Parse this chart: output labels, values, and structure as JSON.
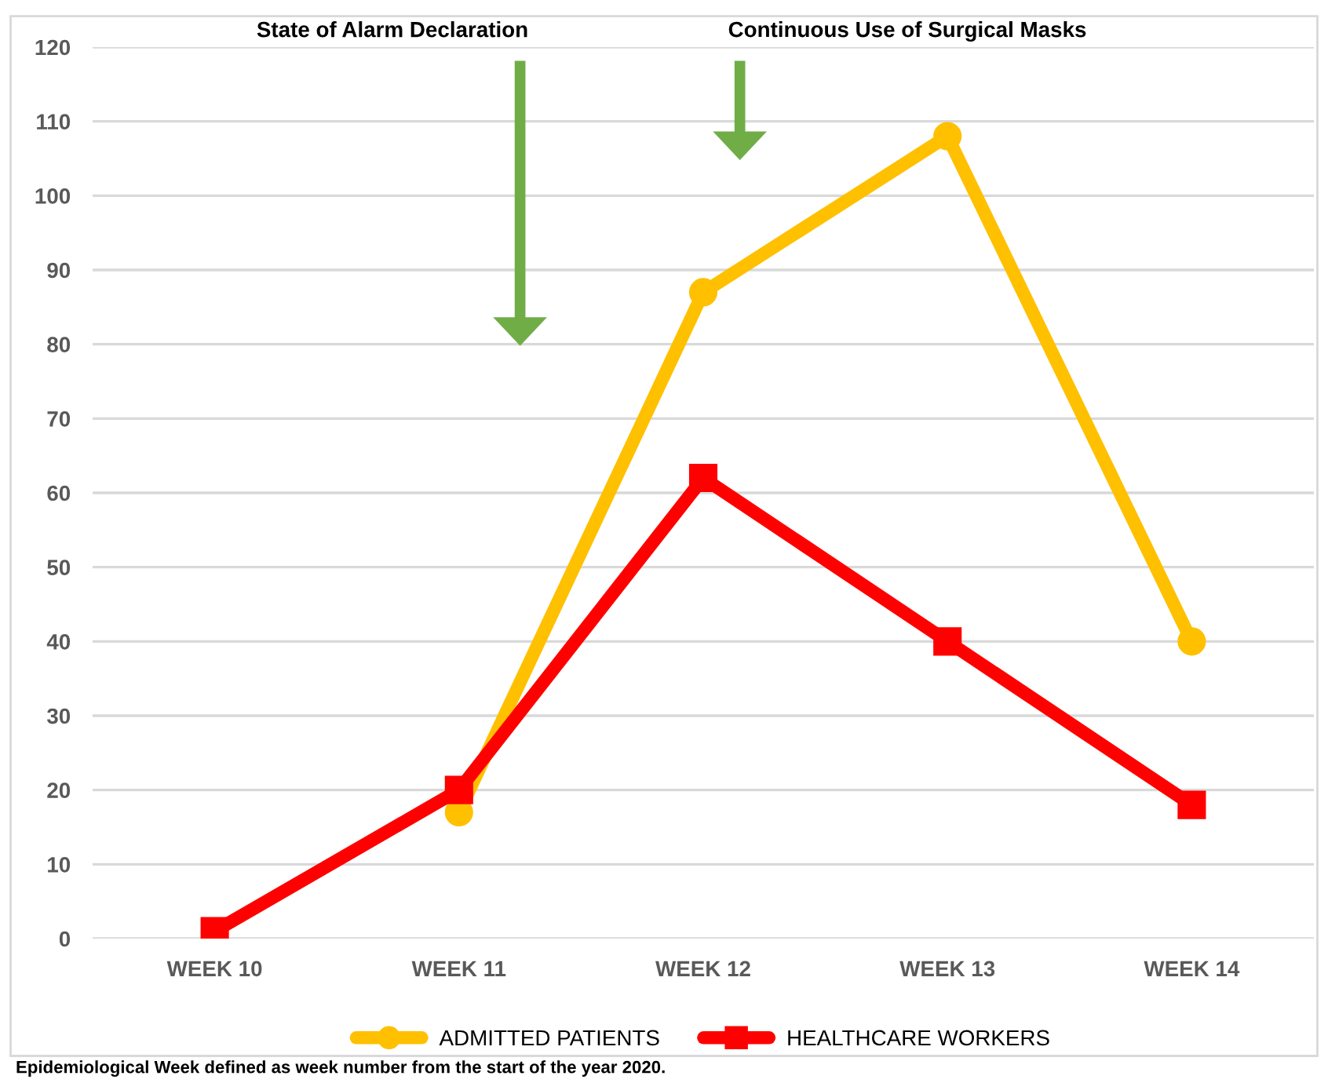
{
  "chart_data": {
    "type": "line",
    "categories": [
      "WEEK 10",
      "WEEK 11",
      "WEEK 12",
      "WEEK 13",
      "WEEK 14"
    ],
    "series": [
      {
        "name": "ADMITTED PATIENTS",
        "color": "#ffc000",
        "values": [
          null,
          17,
          87,
          108,
          40
        ],
        "marker": "circle"
      },
      {
        "name": "HEALTHCARE WORKERS",
        "color": "#ff0000",
        "values": [
          1,
          20,
          62,
          40,
          18
        ],
        "marker": "square"
      }
    ],
    "ylim": [
      0,
      120
    ],
    "yticks": [
      0,
      10,
      20,
      30,
      40,
      50,
      60,
      70,
      80,
      90,
      100,
      110,
      120
    ],
    "grid": "y",
    "legend": "bottom",
    "line_style": "solid",
    "annotations": [
      "State of Alarm Declaration",
      "Continuous Use of Surgical Masks",
      "Epidemiological Week defined as week number from the start of the year 2020."
    ]
  }
}
